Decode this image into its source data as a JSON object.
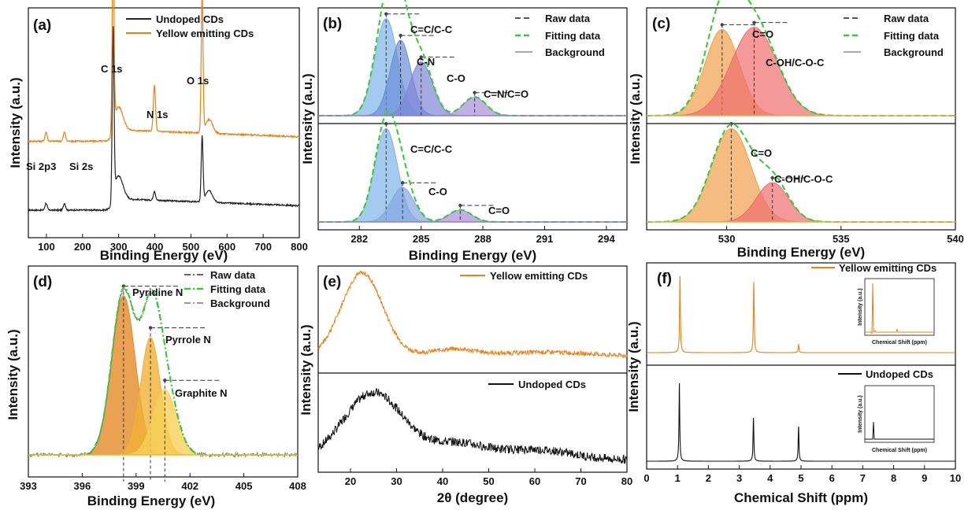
{
  "chart_data": [
    {
      "panel": "(a)",
      "type": "line",
      "xlabel": "Binding Energy (eV)",
      "ylabel": "Intensity (a.u.)",
      "xlim": [
        50,
        800
      ],
      "xticks": [
        100,
        200,
        300,
        400,
        500,
        600,
        700,
        800
      ],
      "series": [
        {
          "name": "Undoped CDs",
          "color": "#222222",
          "base": 0.12,
          "peaks": [
            [
              99,
              0.03,
              3
            ],
            [
              150,
              0.03,
              3
            ],
            [
              284.5,
              0.72,
              2.5
            ],
            [
              300,
              0.1,
              12
            ],
            [
              399,
              0.04,
              3
            ],
            [
              531,
              0.28,
              2.5
            ],
            [
              550,
              0.05,
              10
            ]
          ]
        },
        {
          "name": "Yellow emitting CDs",
          "color": "#f07f13",
          "base": 0.42,
          "peaks": [
            [
              99,
              0.04,
              3
            ],
            [
              150,
              0.04,
              3
            ],
            [
              284.5,
              0.82,
              2.5
            ],
            [
              300,
              0.1,
              12
            ],
            [
              399,
              0.2,
              3
            ],
            [
              531,
              0.6,
              2.5
            ],
            [
              550,
              0.06,
              10
            ]
          ]
        }
      ],
      "annotations": [
        "Si 2p3",
        "Si 2s",
        "C 1s",
        "N 1s",
        "O 1s"
      ]
    },
    {
      "panel": "(b)",
      "type": "line",
      "xlabel": "Binding Energy (eV)",
      "ylabel": "Intensity (a.u.)",
      "xlim": [
        280,
        295
      ],
      "xticks": [
        282,
        285,
        288,
        291,
        294
      ],
      "legend": [
        "Raw data",
        "Fitting data",
        "Background"
      ],
      "top_components": [
        {
          "label": "C=C/C-C",
          "center": 283.3,
          "height": 0.9,
          "width": 0.55,
          "color": "#7fb4e8"
        },
        {
          "label": "C-N",
          "center": 284.0,
          "height": 0.7,
          "width": 0.5,
          "color": "#6a8fd8"
        },
        {
          "label": "C-O",
          "center": 285.0,
          "height": 0.5,
          "width": 0.55,
          "color": "#7f86d8"
        },
        {
          "label": "C=N/C=O",
          "center": 287.6,
          "height": 0.17,
          "width": 0.55,
          "color": "#a98bdc"
        }
      ],
      "bottom_components": [
        {
          "label": "C=C/C-C",
          "center": 283.3,
          "height": 0.95,
          "width": 0.55,
          "color": "#7fb4e8"
        },
        {
          "label": "C-O",
          "center": 284.1,
          "height": 0.35,
          "width": 0.55,
          "color": "#86a8e0"
        },
        {
          "label": "C=O",
          "center": 286.9,
          "height": 0.12,
          "width": 0.55,
          "color": "#a98bdc"
        }
      ]
    },
    {
      "panel": "(c)",
      "type": "line",
      "xlabel": "Binding Energy (eV)",
      "ylabel": "Intensity (a.u.)",
      "xlim": [
        526.5,
        540
      ],
      "xticks": [
        530,
        535,
        540
      ],
      "legend": [
        "Raw data",
        "Fitting data",
        "Background"
      ],
      "top_components": [
        {
          "label": "C=O",
          "center": 529.8,
          "height": 0.8,
          "width": 0.75,
          "color": "#f0a04a"
        },
        {
          "label": "C-OH/C-O-C",
          "center": 531.2,
          "height": 0.82,
          "width": 1.0,
          "color": "#ee6e6e"
        }
      ],
      "bottom_components": [
        {
          "label": "C=O",
          "center": 530.2,
          "height": 0.95,
          "width": 0.85,
          "color": "#f0a04a"
        },
        {
          "label": "C-OH/C-O-C",
          "center": 532.0,
          "height": 0.4,
          "width": 0.7,
          "color": "#ee6e6e"
        }
      ]
    },
    {
      "panel": "(d)",
      "type": "line",
      "xlabel": "Binding Energy (eV)",
      "ylabel": "Intensity (a.u.)",
      "xlim": [
        393,
        408
      ],
      "xticks": [
        393,
        396,
        399,
        402,
        405,
        408
      ],
      "legend": [
        "Raw data",
        "Fitting data",
        "Background"
      ],
      "components": [
        {
          "label": "Pyridine N",
          "center": 398.3,
          "height": 0.88,
          "width": 0.65,
          "color": "#e58a26"
        },
        {
          "label": "Pyrrole N",
          "center": 399.8,
          "height": 0.65,
          "width": 0.55,
          "color": "#f0b236"
        },
        {
          "label": "Graphite N",
          "center": 400.6,
          "height": 0.36,
          "width": 0.65,
          "color": "#f7cf59"
        }
      ]
    },
    {
      "panel": "(e)",
      "type": "line",
      "xlabel": "2θ (degree)",
      "ylabel": "Intensity (a.u.)",
      "xlim": [
        13,
        80
      ],
      "xticks": [
        20,
        30,
        40,
        50,
        60,
        70,
        80
      ],
      "series": [
        {
          "name": "Yellow emitting CDs",
          "color": "#f07f13",
          "peak_2theta": 22.5
        },
        {
          "name": "Undoped CDs",
          "color": "#111111",
          "peak_2theta": 25
        }
      ]
    },
    {
      "panel": "(f)",
      "type": "line",
      "xlabel": "Chemical Shift (ppm)",
      "ylabel": "Intensity (a.u.)",
      "xlim": [
        0,
        10
      ],
      "xticks": [
        0,
        1,
        2,
        3,
        4,
        5,
        6,
        7,
        8,
        9,
        10
      ],
      "series": [
        {
          "name": "Yellow emitting CDs",
          "color": "#f07f13",
          "peaks": [
            [
              1.08,
              0.9
            ],
            [
              3.47,
              0.83
            ],
            [
              4.92,
              0.1
            ]
          ]
        },
        {
          "name": "Undoped CDs",
          "color": "#111111",
          "peaks": [
            [
              1.06,
              0.9
            ],
            [
              3.46,
              0.5
            ],
            [
              4.92,
              0.4
            ]
          ]
        }
      ],
      "inset": {
        "xlabel": "Chemical Shift (ppm)",
        "ylabel": "Intensity (a.u.)",
        "xticks": [
          "4",
          "5",
          "6",
          "7",
          "8",
          "9",
          "10"
        ]
      }
    }
  ]
}
